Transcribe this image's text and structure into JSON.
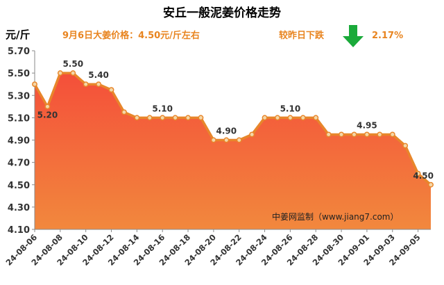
{
  "header": {
    "title": "安丘一般泥姜价格走势",
    "unit": "元/斤",
    "price_note": "9月6日大姜价格：4.50元/斤左右",
    "change_label": "较昨日下跌",
    "change_value": "2.17%",
    "change_direction_icon": "down-arrow-icon",
    "source": "中姜网监制（www.jiang7.com）"
  },
  "colors": {
    "title": "#000000",
    "note_orange": "#e8841f",
    "line": "#e8862b",
    "marker_fill": "#f4d7a8",
    "area_top": "#f44f3a",
    "area_bottom": "#f2883d",
    "arrow_green": "#1aaa3a",
    "axis": "#8a8a8a"
  },
  "chart_data": {
    "type": "area",
    "title": "安丘一般泥姜价格走势",
    "ylabel": "元/斤",
    "xlabel": "",
    "ylim": [
      4.1,
      5.7
    ],
    "yticks": [
      "5.70",
      "5.50",
      "5.30",
      "5.10",
      "4.90",
      "4.70",
      "4.50",
      "4.30",
      "4.10"
    ],
    "grid": false,
    "x": [
      "24-08-06",
      "24-08-07",
      "24-08-08",
      "24-08-09",
      "24-08-10",
      "24-08-11",
      "24-08-12",
      "24-08-13",
      "24-08-14",
      "24-08-15",
      "24-08-16",
      "24-08-17",
      "24-08-18",
      "24-08-19",
      "24-08-20",
      "24-08-21",
      "24-08-22",
      "24-08-23",
      "24-08-24",
      "24-08-25",
      "24-08-26",
      "24-08-27",
      "24-08-28",
      "24-08-29",
      "24-08-30",
      "24-08-31",
      "24-09-01",
      "24-09-02",
      "24-09-03",
      "24-09-04",
      "24-09-05",
      "24-09-06"
    ],
    "xtick_labels": [
      "24-08-06",
      "24-08-08",
      "24-08-10",
      "24-08-12",
      "24-08-14",
      "24-08-16",
      "24-08-18",
      "24-08-20",
      "24-08-22",
      "24-08-24",
      "24-08-26",
      "24-08-28",
      "24-08-30",
      "24-09-01",
      "24-09-03",
      "24-09-05"
    ],
    "values": [
      5.4,
      5.2,
      5.5,
      5.5,
      5.4,
      5.4,
      5.35,
      5.15,
      5.1,
      5.1,
      5.1,
      5.1,
      5.1,
      5.1,
      4.9,
      4.9,
      4.9,
      4.95,
      5.1,
      5.1,
      5.1,
      5.1,
      5.1,
      4.95,
      4.95,
      4.95,
      4.95,
      4.95,
      4.95,
      4.85,
      4.6,
      4.5
    ],
    "annotations": [
      {
        "index": 1,
        "label": "5.20"
      },
      {
        "index": 3,
        "label": "5.50"
      },
      {
        "index": 5,
        "label": "5.40"
      },
      {
        "index": 10,
        "label": "5.10"
      },
      {
        "index": 15,
        "label": "4.90"
      },
      {
        "index": 20,
        "label": "5.10"
      },
      {
        "index": 26,
        "label": "4.95"
      },
      {
        "index": 31,
        "label": "4.50"
      }
    ]
  }
}
